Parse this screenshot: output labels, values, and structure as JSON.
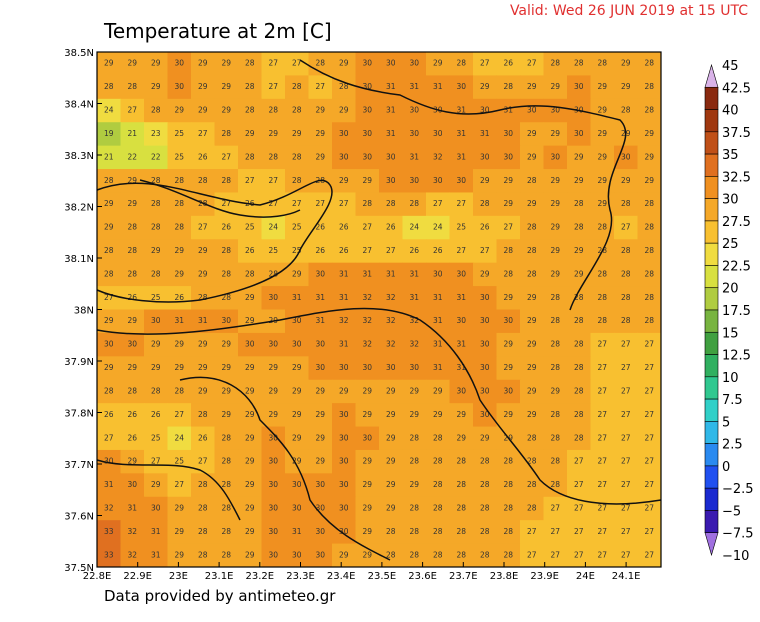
{
  "header": {
    "title": "Temperature at 2m [C]",
    "valid": "Valid: Wed 26 JUN 2019 at 15 UTC"
  },
  "footer": "Data provided by antimeteo.gr",
  "lon_labels": [
    "22.8E",
    "22.9E",
    "23E",
    "23.1E",
    "23.2E",
    "23.3E",
    "23.4E",
    "23.5E",
    "23.6E",
    "23.7E",
    "23.8E",
    "23.9E",
    "24E",
    "24.1E"
  ],
  "lat_labels": [
    "38.5N",
    "38.4N",
    "38.3N",
    "38.2N",
    "38.1N",
    "38N",
    "37.9N",
    "37.8N",
    "37.7N",
    "37.6N",
    "37.5N"
  ],
  "colorbar": {
    "labels": [
      "45",
      "42.5",
      "40",
      "37.5",
      "35",
      "32.5",
      "30",
      "27.5",
      "25",
      "22.5",
      "20",
      "17.5",
      "15",
      "12.5",
      "10",
      "7.5",
      "5",
      "2.5",
      "0",
      "−2.5",
      "−5",
      "−7.5",
      "−10"
    ],
    "colors": [
      "#d9b3e8",
      "#8a2a10",
      "#a03810",
      "#c05018",
      "#e07020",
      "#f09020",
      "#f5a828",
      "#f8c030",
      "#f0dc40",
      "#d8e040",
      "#b0cc40",
      "#78b440",
      "#40a040",
      "#30b060",
      "#30c890",
      "#30d0c8",
      "#30b8e8",
      "#2a8af0",
      "#2050f0",
      "#1a2ad0",
      "#3a1ab0",
      "#a070e0"
    ]
  },
  "grid": {
    "rows": [
      [
        29,
        29,
        29,
        30,
        29,
        29,
        28,
        27,
        27,
        28,
        29,
        30,
        30,
        30,
        29,
        28,
        27,
        26,
        27,
        28,
        28,
        28,
        29,
        28
      ],
      [
        28,
        28,
        29,
        30,
        29,
        29,
        28,
        27,
        28,
        27,
        28,
        30,
        31,
        31,
        31,
        30,
        29,
        28,
        29,
        29,
        30,
        29,
        29,
        28
      ],
      [
        24,
        27,
        28,
        29,
        29,
        29,
        28,
        28,
        28,
        29,
        29,
        30,
        31,
        30,
        30,
        31,
        30,
        31,
        30,
        30,
        30,
        29,
        28,
        28
      ],
      [
        19,
        21,
        23,
        25,
        27,
        28,
        29,
        29,
        29,
        29,
        30,
        30,
        31,
        30,
        30,
        31,
        31,
        30,
        29,
        29,
        30,
        29,
        29,
        29
      ],
      [
        21,
        22,
        22,
        25,
        26,
        27,
        28,
        28,
        28,
        29,
        30,
        30,
        30,
        31,
        32,
        31,
        30,
        30,
        29,
        30,
        29,
        29,
        30,
        29
      ],
      [
        28,
        29,
        28,
        28,
        28,
        28,
        27,
        27,
        28,
        28,
        29,
        29,
        30,
        30,
        30,
        30,
        29,
        29,
        28,
        29,
        29,
        29,
        29,
        29
      ],
      [
        29,
        29,
        28,
        28,
        28,
        27,
        26,
        27,
        27,
        27,
        27,
        28,
        28,
        28,
        27,
        27,
        28,
        29,
        29,
        29,
        28,
        29,
        28,
        28
      ],
      [
        29,
        28,
        28,
        28,
        27,
        26,
        25,
        24,
        25,
        26,
        26,
        27,
        26,
        24,
        24,
        25,
        26,
        27,
        28,
        29,
        28,
        28,
        27,
        28
      ],
      [
        28,
        28,
        29,
        29,
        29,
        28,
        26,
        25,
        25,
        26,
        26,
        27,
        27,
        26,
        26,
        27,
        27,
        28,
        28,
        29,
        29,
        28,
        28,
        28
      ],
      [
        28,
        28,
        28,
        29,
        29,
        28,
        28,
        28,
        29,
        30,
        31,
        31,
        31,
        31,
        30,
        30,
        29,
        28,
        28,
        29,
        29,
        28,
        28,
        28
      ],
      [
        27,
        26,
        25,
        26,
        28,
        28,
        29,
        30,
        31,
        31,
        31,
        32,
        32,
        31,
        31,
        31,
        30,
        29,
        29,
        28,
        28,
        28,
        28,
        28
      ],
      [
        29,
        29,
        30,
        31,
        31,
        30,
        29,
        29,
        30,
        31,
        32,
        32,
        32,
        32,
        31,
        30,
        30,
        30,
        29,
        28,
        28,
        28,
        28,
        28
      ],
      [
        30,
        30,
        29,
        29,
        29,
        29,
        30,
        30,
        30,
        30,
        31,
        32,
        32,
        32,
        31,
        31,
        30,
        29,
        29,
        28,
        28,
        27,
        27,
        27
      ],
      [
        29,
        29,
        29,
        29,
        29,
        29,
        29,
        29,
        29,
        30,
        30,
        30,
        30,
        30,
        31,
        31,
        30,
        29,
        29,
        28,
        28,
        27,
        27,
        27
      ],
      [
        28,
        28,
        28,
        28,
        29,
        29,
        29,
        29,
        29,
        29,
        29,
        29,
        29,
        29,
        29,
        30,
        30,
        30,
        29,
        29,
        28,
        27,
        27,
        27
      ],
      [
        26,
        26,
        26,
        27,
        28,
        29,
        29,
        29,
        29,
        29,
        30,
        29,
        29,
        29,
        29,
        29,
        30,
        29,
        29,
        28,
        28,
        27,
        27,
        27
      ],
      [
        27,
        26,
        25,
        24,
        26,
        28,
        29,
        30,
        29,
        29,
        30,
        30,
        29,
        28,
        28,
        29,
        29,
        29,
        28,
        28,
        28,
        27,
        27,
        27
      ],
      [
        30,
        29,
        27,
        25,
        27,
        28,
        29,
        30,
        29,
        29,
        30,
        29,
        29,
        28,
        28,
        28,
        28,
        28,
        28,
        28,
        27,
        27,
        27,
        27
      ],
      [
        31,
        30,
        29,
        27,
        28,
        28,
        29,
        30,
        30,
        30,
        30,
        29,
        29,
        29,
        28,
        28,
        28,
        28,
        28,
        28,
        27,
        27,
        27,
        27
      ],
      [
        32,
        31,
        30,
        29,
        28,
        28,
        29,
        30,
        30,
        30,
        30,
        29,
        29,
        28,
        28,
        28,
        28,
        28,
        28,
        27,
        27,
        27,
        27,
        27
      ],
      [
        33,
        32,
        31,
        29,
        28,
        28,
        29,
        30,
        31,
        30,
        30,
        29,
        28,
        28,
        28,
        28,
        28,
        28,
        27,
        27,
        27,
        27,
        27,
        27
      ],
      [
        33,
        32,
        31,
        29,
        28,
        28,
        29,
        30,
        30,
        30,
        29,
        29,
        28,
        28,
        28,
        28,
        28,
        28,
        27,
        27,
        27,
        27,
        27,
        27
      ]
    ]
  }
}
